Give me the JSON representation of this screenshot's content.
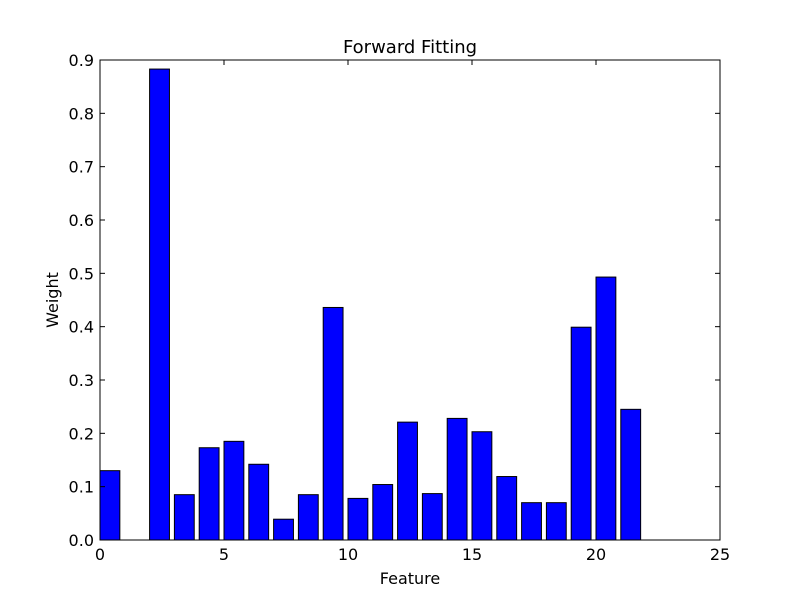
{
  "chart_data": {
    "type": "bar",
    "title": "Forward Fitting",
    "xlabel": "Feature",
    "ylabel": "Weight",
    "xlim": [
      0,
      25
    ],
    "ylim": [
      0,
      0.9
    ],
    "xticks": [
      0,
      5,
      10,
      15,
      20,
      25
    ],
    "yticks": [
      0.0,
      0.1,
      0.2,
      0.3,
      0.4,
      0.5,
      0.6,
      0.7,
      0.8,
      0.9
    ],
    "ytick_labels": [
      "0.0",
      "0.1",
      "0.2",
      "0.3",
      "0.4",
      "0.5",
      "0.6",
      "0.7",
      "0.8",
      "0.9"
    ],
    "bar_width": 0.8,
    "bar_color": "#0000ff",
    "edge_color": "#000000",
    "grid": false,
    "x": [
      0,
      1,
      2,
      3,
      4,
      5,
      6,
      7,
      8,
      9,
      10,
      11,
      12,
      13,
      14,
      15,
      16,
      17,
      18,
      19,
      20,
      21
    ],
    "values": [
      0.13,
      0.0,
      0.883,
      0.085,
      0.173,
      0.185,
      0.142,
      0.039,
      0.085,
      0.436,
      0.078,
      0.104,
      0.221,
      0.087,
      0.228,
      0.203,
      0.119,
      0.07,
      0.07,
      0.399,
      0.493,
      0.245
    ]
  }
}
